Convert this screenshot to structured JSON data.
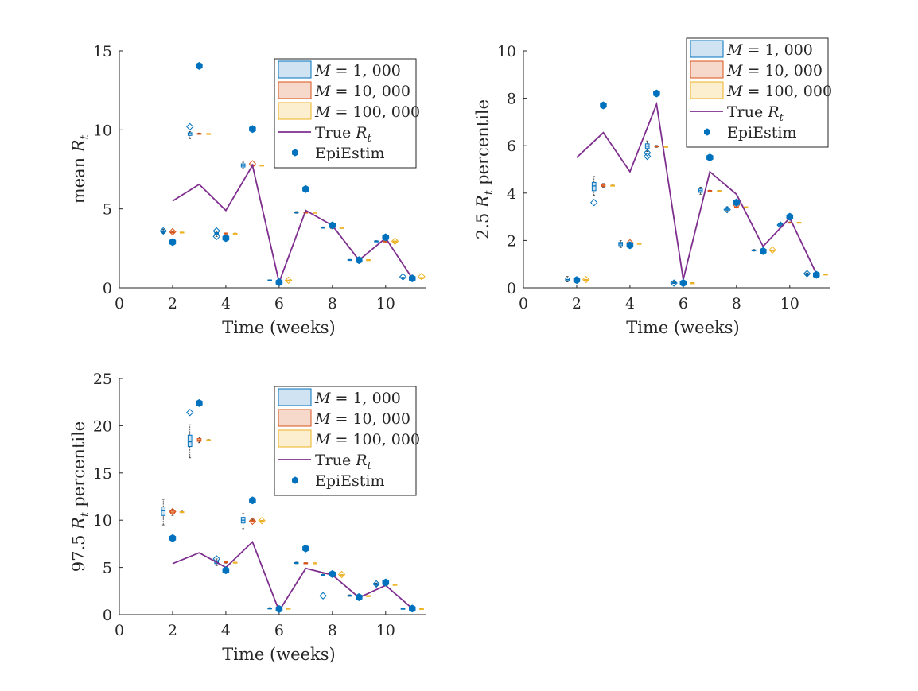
{
  "colors": {
    "m1000": "#0072BD",
    "m10000": "#D95319",
    "m100000": "#EDB120",
    "true_line": "#7E2F8E",
    "epiestim": "#0072BD",
    "axis": "#262626"
  },
  "chart_data": [
    {
      "type": "box+line+scatter",
      "title": "",
      "xlabel": "Time  (weeks)",
      "ylabel": "mean R_t",
      "ylabel_parts": {
        "pre": "mean ",
        "sym": "R",
        "sub": "t",
        "post": ""
      },
      "xlim": [
        0,
        11.5
      ],
      "ylim": [
        0,
        15
      ],
      "xticks": [
        0,
        2,
        4,
        6,
        8,
        10
      ],
      "yticks": [
        0,
        5,
        10,
        15
      ],
      "legend_position": "top-right",
      "legend": [
        {
          "kind": "m1000",
          "pre": "M",
          "post": " = 1, 000"
        },
        {
          "kind": "m10000",
          "pre": "M",
          "post": " = 10, 000"
        },
        {
          "kind": "m100000",
          "pre": "M",
          "post": " = 100, 000"
        },
        {
          "kind": "true",
          "pre": "True ",
          "sym": "R",
          "sub": "t"
        },
        {
          "kind": "epi",
          "pre": "EpiEstim"
        }
      ],
      "weeks": [
        2,
        3,
        4,
        5,
        6,
        7,
        8,
        9,
        10,
        11
      ],
      "true_Rt": [
        5.5,
        6.55,
        4.9,
        7.75,
        0.35,
        4.9,
        3.95,
        1.75,
        3.15,
        0.6
      ],
      "epiestim": [
        2.9,
        14.05,
        3.15,
        10.05,
        0.35,
        6.25,
        3.95,
        1.75,
        3.2,
        0.6
      ],
      "boxes": {
        "M=1,000": [
          [
            3.45,
            3.5,
            3.55,
            3.62,
            3.7
          ],
          [
            9.45,
            9.65,
            9.75,
            9.82,
            9.9
          ],
          [
            3.25,
            3.35,
            3.42,
            3.5,
            3.58
          ],
          [
            7.55,
            7.65,
            7.75,
            7.85,
            7.95
          ],
          [
            0.46,
            0.47,
            0.48,
            0.5,
            0.51
          ],
          [
            4.72,
            4.75,
            4.77,
            4.8,
            4.83
          ],
          [
            3.78,
            3.8,
            3.82,
            3.84,
            3.86
          ],
          [
            1.76,
            1.77,
            1.78,
            1.79,
            1.8
          ],
          [
            2.92,
            2.94,
            2.95,
            2.97,
            2.99
          ],
          [
            0.63,
            0.64,
            0.65,
            0.66,
            0.67
          ]
        ],
        "M=10,000": [
          [
            3.48,
            3.5,
            3.52,
            3.54,
            3.56
          ],
          [
            9.72,
            9.74,
            9.76,
            9.78,
            9.8
          ],
          [
            3.42,
            3.44,
            3.45,
            3.47,
            3.48
          ],
          [
            7.72,
            7.74,
            7.76,
            7.78,
            7.8
          ],
          [
            0.47,
            0.48,
            0.48,
            0.49,
            0.49
          ],
          [
            4.76,
            4.77,
            4.78,
            4.79,
            4.8
          ],
          [
            3.8,
            3.81,
            3.82,
            3.82,
            3.83
          ],
          [
            1.77,
            1.78,
            1.78,
            1.78,
            1.79
          ],
          [
            2.94,
            2.95,
            2.95,
            2.96,
            2.96
          ],
          [
            0.64,
            0.65,
            0.65,
            0.65,
            0.66
          ]
        ],
        "M=100,000": [
          [
            3.51,
            3.52,
            3.52,
            3.53,
            3.53
          ],
          [
            9.75,
            9.76,
            9.76,
            9.77,
            9.77
          ],
          [
            3.44,
            3.45,
            3.45,
            3.45,
            3.46
          ],
          [
            7.75,
            7.76,
            7.76,
            7.77,
            7.77
          ],
          [
            0.48,
            0.48,
            0.48,
            0.48,
            0.49
          ],
          [
            4.77,
            4.78,
            4.78,
            4.78,
            4.79
          ],
          [
            3.81,
            3.82,
            3.82,
            3.82,
            3.82
          ],
          [
            1.78,
            1.78,
            1.78,
            1.78,
            1.79
          ],
          [
            2.95,
            2.95,
            2.95,
            2.96,
            2.96
          ],
          [
            0.65,
            0.65,
            0.65,
            0.65,
            0.66
          ]
        ]
      },
      "outliers": {
        "M=1,000": [
          [
            1.65,
            3.6
          ],
          [
            2.65,
            10.2
          ],
          [
            3.65,
            3.6
          ],
          [
            3.65,
            3.25
          ],
          [
            10.65,
            0.7
          ]
        ],
        "M=10,000": [
          [
            2.0,
            3.55
          ],
          [
            5.0,
            7.85
          ],
          [
            10.0,
            3.2
          ]
        ],
        "M=100,000": [
          [
            6.35,
            0.48
          ],
          [
            10.35,
            2.95
          ],
          [
            11.35,
            0.72
          ]
        ]
      }
    },
    {
      "type": "box+line+scatter",
      "title": "",
      "xlabel": "Time  (weeks)",
      "ylabel": "2.5 R_t percentile",
      "ylabel_parts": {
        "pre": "2.5 ",
        "sym": "R",
        "sub": "t",
        "post": "  percentile"
      },
      "xlim": [
        0,
        11.5
      ],
      "ylim": [
        0,
        10
      ],
      "xticks": [
        0,
        2,
        4,
        6,
        8,
        10
      ],
      "yticks": [
        0,
        2,
        4,
        6,
        8,
        10
      ],
      "legend_position": "top-right",
      "legend": [
        {
          "kind": "m1000",
          "pre": "M",
          "post": " = 1, 000"
        },
        {
          "kind": "m10000",
          "pre": "M",
          "post": " = 10, 000"
        },
        {
          "kind": "m100000",
          "pre": "M",
          "post": " = 100, 000"
        },
        {
          "kind": "true",
          "pre": "True ",
          "sym": "R",
          "sub": "t"
        },
        {
          "kind": "epi",
          "pre": "EpiEstim"
        }
      ],
      "weeks": [
        2,
        3,
        4,
        5,
        6,
        7,
        8,
        9,
        10,
        11
      ],
      "true_Rt": [
        5.5,
        6.55,
        4.9,
        7.75,
        0.35,
        4.9,
        3.95,
        1.75,
        2.95,
        0.6
      ],
      "epiestim": [
        0.33,
        7.7,
        1.8,
        8.2,
        0.2,
        5.5,
        3.6,
        1.55,
        3.0,
        0.55
      ],
      "boxes": {
        "M=1,000": [
          [
            0.25,
            0.3,
            0.35,
            0.42,
            0.48
          ],
          [
            3.9,
            4.1,
            4.3,
            4.45,
            4.7
          ],
          [
            1.7,
            1.78,
            1.85,
            1.92,
            2.0
          ],
          [
            5.75,
            5.88,
            5.98,
            6.08,
            6.2
          ],
          [
            0.18,
            0.2,
            0.21,
            0.23,
            0.25
          ],
          [
            3.95,
            4.03,
            4.1,
            4.17,
            4.25
          ],
          [
            3.22,
            3.28,
            3.32,
            3.36,
            3.42
          ],
          [
            1.55,
            1.57,
            1.58,
            1.6,
            1.62
          ],
          [
            2.58,
            2.62,
            2.66,
            2.7,
            2.74
          ],
          [
            0.52,
            0.55,
            0.57,
            0.6,
            0.63
          ]
        ],
        "M=10,000": [
          [
            0.31,
            0.33,
            0.34,
            0.36,
            0.38
          ],
          [
            4.25,
            4.28,
            4.32,
            4.36,
            4.4
          ],
          [
            1.84,
            1.86,
            1.88,
            1.9,
            1.92
          ],
          [
            5.93,
            5.95,
            5.97,
            5.99,
            6.01
          ],
          [
            0.2,
            0.21,
            0.21,
            0.22,
            0.22
          ],
          [
            4.08,
            4.09,
            4.1,
            4.11,
            4.12
          ],
          [
            3.39,
            3.4,
            3.41,
            3.42,
            3.43
          ],
          [
            1.58,
            1.58,
            1.59,
            1.59,
            1.6
          ],
          [
            2.74,
            2.75,
            2.76,
            2.77,
            2.78
          ],
          [
            0.56,
            0.57,
            0.57,
            0.58,
            0.58
          ]
        ],
        "M=100,000": [
          [
            0.33,
            0.34,
            0.34,
            0.35,
            0.35
          ],
          [
            4.3,
            4.31,
            4.32,
            4.33,
            4.34
          ],
          [
            1.87,
            1.88,
            1.88,
            1.88,
            1.89
          ],
          [
            5.96,
            5.97,
            5.97,
            5.97,
            5.98
          ],
          [
            0.21,
            0.21,
            0.21,
            0.21,
            0.22
          ],
          [
            4.09,
            4.1,
            4.1,
            4.1,
            4.11
          ],
          [
            3.41,
            3.41,
            3.41,
            3.42,
            3.42
          ],
          [
            1.59,
            1.59,
            1.59,
            1.59,
            1.6
          ],
          [
            2.76,
            2.76,
            2.76,
            2.77,
            2.77
          ],
          [
            0.57,
            0.57,
            0.57,
            0.58,
            0.58
          ]
        ]
      },
      "outliers": {
        "M=1,000": [
          [
            2.65,
            3.6
          ],
          [
            4.65,
            5.55
          ],
          [
            4.65,
            5.7
          ],
          [
            5.65,
            0.2
          ],
          [
            7.65,
            3.3
          ],
          [
            9.65,
            2.65
          ],
          [
            10.65,
            0.6
          ]
        ],
        "M=10,000": [
          [
            4.0,
            1.9
          ],
          [
            8.0,
            3.5
          ]
        ],
        "M=100,000": [
          [
            2.35,
            0.35
          ],
          [
            9.35,
            1.6
          ]
        ]
      }
    },
    {
      "type": "box+line+scatter",
      "title": "",
      "xlabel": "Time  (weeks)",
      "ylabel": "97.5 R_t percentile",
      "ylabel_parts": {
        "pre": "97.5 ",
        "sym": "R",
        "sub": "t",
        "post": "  percentile"
      },
      "xlim": [
        0,
        11.5
      ],
      "ylim": [
        0,
        25
      ],
      "xticks": [
        0,
        2,
        4,
        6,
        8,
        10
      ],
      "yticks": [
        0,
        5,
        10,
        15,
        20,
        25
      ],
      "legend_position": "top-right",
      "legend": [
        {
          "kind": "m1000",
          "pre": "M",
          "post": " = 1, 000"
        },
        {
          "kind": "m10000",
          "pre": "M",
          "post": " = 10, 000"
        },
        {
          "kind": "m100000",
          "pre": "M",
          "post": " = 100, 000"
        },
        {
          "kind": "true",
          "pre": "True ",
          "sym": "R",
          "sub": "t"
        },
        {
          "kind": "epi",
          "pre": "EpiEstim"
        }
      ],
      "weeks": [
        2,
        3,
        4,
        5,
        6,
        7,
        8,
        9,
        10,
        11
      ],
      "true_Rt": [
        5.4,
        6.55,
        5.0,
        7.7,
        0.4,
        4.9,
        4.2,
        1.8,
        3.1,
        0.65
      ],
      "epiestim": [
        8.1,
        22.4,
        4.7,
        12.1,
        0.6,
        7.0,
        4.3,
        1.85,
        3.4,
        0.65
      ],
      "boxes": {
        "M=1,000": [
          [
            9.5,
            10.5,
            11.0,
            11.4,
            12.2
          ],
          [
            16.6,
            17.8,
            18.3,
            19.0,
            20.1
          ],
          [
            5.2,
            5.4,
            5.55,
            5.7,
            5.9
          ],
          [
            9.1,
            9.7,
            10.0,
            10.3,
            10.7
          ],
          [
            0.6,
            0.65,
            0.68,
            0.71,
            0.75
          ],
          [
            5.4,
            5.45,
            5.48,
            5.52,
            5.56
          ],
          [
            4.15,
            4.2,
            4.22,
            4.25,
            4.3
          ],
          [
            1.95,
            2.0,
            2.02,
            2.05,
            2.1
          ],
          [
            3.0,
            3.12,
            3.2,
            3.28,
            3.35
          ],
          [
            0.6,
            0.63,
            0.65,
            0.67,
            0.7
          ]
        ],
        "M=10,000": [
          [
            10.5,
            10.7,
            10.85,
            11.0,
            11.15
          ],
          [
            18.2,
            18.35,
            18.5,
            18.65,
            18.8
          ],
          [
            5.45,
            5.5,
            5.55,
            5.6,
            5.65
          ],
          [
            9.8,
            9.9,
            9.95,
            10.0,
            10.1
          ],
          [
            0.66,
            0.67,
            0.68,
            0.69,
            0.7
          ],
          [
            5.46,
            5.47,
            5.48,
            5.49,
            5.5
          ],
          [
            4.2,
            4.21,
            4.22,
            4.23,
            4.24
          ],
          [
            1.99,
            2.0,
            2.01,
            2.02,
            2.03
          ],
          [
            3.15,
            3.17,
            3.19,
            3.21,
            3.23
          ],
          [
            0.64,
            0.64,
            0.65,
            0.65,
            0.66
          ]
        ],
        "M=100,000": [
          [
            10.8,
            10.85,
            10.88,
            10.9,
            10.95
          ],
          [
            18.45,
            18.48,
            18.5,
            18.52,
            18.55
          ],
          [
            5.52,
            5.53,
            5.54,
            5.55,
            5.56
          ],
          [
            9.92,
            9.94,
            9.95,
            9.96,
            9.98
          ],
          [
            0.67,
            0.67,
            0.68,
            0.68,
            0.68
          ],
          [
            5.47,
            5.48,
            5.48,
            5.48,
            5.49
          ],
          [
            4.21,
            4.22,
            4.22,
            4.22,
            4.23
          ],
          [
            2.0,
            2.01,
            2.01,
            2.01,
            2.02
          ],
          [
            3.18,
            3.19,
            3.19,
            3.2,
            3.2
          ],
          [
            0.64,
            0.65,
            0.65,
            0.65,
            0.65
          ]
        ]
      },
      "outliers": {
        "M=1,000": [
          [
            2.65,
            21.4
          ],
          [
            3.65,
            5.9
          ],
          [
            7.65,
            2.0
          ],
          [
            9.65,
            3.25
          ]
        ],
        "M=10,000": [
          [
            2.0,
            10.9
          ],
          [
            5.0,
            9.9
          ]
        ],
        "M=100,000": [
          [
            5.35,
            9.95
          ],
          [
            8.35,
            4.25
          ]
        ]
      }
    }
  ]
}
